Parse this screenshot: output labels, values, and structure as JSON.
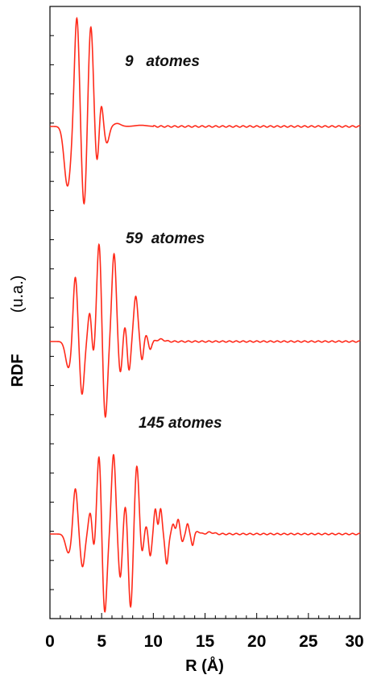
{
  "chart_data": {
    "type": "line",
    "xlabel": "R (Å)",
    "ylabel_main": "RDF",
    "ylabel_unit": "(u.a.)",
    "xlim": [
      0,
      30
    ],
    "xticks": [
      0,
      5,
      10,
      15,
      20,
      25,
      30
    ],
    "xtick_labels": [
      "0",
      "5",
      "10",
      "15",
      "20",
      "25",
      "30"
    ],
    "line_color": "#ff2a1a",
    "series": [
      {
        "annotation": "9   atomes",
        "peaks": [
          [
            1.7,
            -1.0,
            0.45
          ],
          [
            2.6,
            1.85,
            0.33
          ],
          [
            3.3,
            -1.35,
            0.33
          ],
          [
            3.95,
            1.7,
            0.33
          ],
          [
            4.55,
            -0.65,
            0.28
          ],
          [
            4.95,
            0.42,
            0.26
          ],
          [
            5.5,
            -0.28,
            0.32
          ],
          [
            6.5,
            0.05,
            0.5
          ],
          [
            8.8,
            0.02,
            0.8
          ]
        ]
      },
      {
        "annotation": "59  atomes",
        "peaks": [
          [
            1.8,
            -0.5,
            0.4
          ],
          [
            2.45,
            1.25,
            0.3
          ],
          [
            3.1,
            -1.0,
            0.3
          ],
          [
            3.85,
            0.55,
            0.25
          ],
          [
            4.2,
            -0.3,
            0.22
          ],
          [
            4.75,
            1.85,
            0.3
          ],
          [
            5.35,
            -1.45,
            0.3
          ],
          [
            6.2,
            1.65,
            0.3
          ],
          [
            6.8,
            -0.6,
            0.25
          ],
          [
            7.25,
            0.3,
            0.22
          ],
          [
            7.65,
            -0.55,
            0.22
          ],
          [
            8.3,
            0.85,
            0.28
          ],
          [
            8.9,
            -0.35,
            0.2
          ],
          [
            9.3,
            0.12,
            0.2
          ],
          [
            9.7,
            -0.15,
            0.2
          ],
          [
            10.7,
            0.04,
            0.5
          ]
        ]
      },
      {
        "annotation": "145 atomes",
        "peaks": [
          [
            1.8,
            -0.35,
            0.4
          ],
          [
            2.45,
            0.85,
            0.3
          ],
          [
            3.15,
            -0.6,
            0.3
          ],
          [
            3.9,
            0.4,
            0.25
          ],
          [
            4.25,
            -0.3,
            0.22
          ],
          [
            4.75,
            1.45,
            0.28
          ],
          [
            5.3,
            -1.45,
            0.3
          ],
          [
            6.15,
            1.45,
            0.28
          ],
          [
            6.8,
            -0.8,
            0.25
          ],
          [
            7.3,
            0.55,
            0.25
          ],
          [
            7.8,
            -1.35,
            0.28
          ],
          [
            8.4,
            1.25,
            0.28
          ],
          [
            8.9,
            -0.35,
            0.22
          ],
          [
            9.3,
            0.15,
            0.2
          ],
          [
            9.7,
            -0.4,
            0.2
          ],
          [
            10.2,
            0.45,
            0.2
          ],
          [
            10.7,
            0.45,
            0.2
          ],
          [
            11.3,
            -0.55,
            0.22
          ],
          [
            11.9,
            0.18,
            0.2
          ],
          [
            12.4,
            0.28,
            0.2
          ],
          [
            12.8,
            -0.15,
            0.18
          ],
          [
            13.3,
            0.18,
            0.18
          ],
          [
            13.8,
            -0.2,
            0.18
          ],
          [
            14.3,
            0.05,
            0.25
          ],
          [
            15.5,
            0.03,
            0.5
          ]
        ]
      }
    ]
  }
}
